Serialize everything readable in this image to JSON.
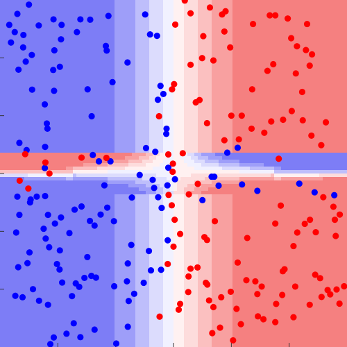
{
  "chart_data": {
    "type": "scatter",
    "title": "",
    "xlabel": "",
    "ylabel": "",
    "xlim": [
      -6,
      6
    ],
    "ylim": [
      -6,
      6
    ],
    "grid": false,
    "legend": "none",
    "colors": {
      "class_a_point": "#0000ff",
      "class_b_point": "#ff0000",
      "region_a_levels": [
        "#7d7df6",
        "#9e9ef9",
        "#bebefb",
        "#dcdcfd",
        "#f1f1ff"
      ],
      "region_b_levels": [
        "#f58080",
        "#f8a0a0",
        "#fbc0c0",
        "#fddcdc",
        "#fff1f1"
      ]
    },
    "background_regions": [
      {
        "label": "blue",
        "class": "a"
      },
      {
        "label": "red",
        "class": "b"
      }
    ],
    "series": [
      {
        "class": "a",
        "points": [
          [
            -5.0,
            5.84
          ],
          [
            -5.4,
            5.52
          ],
          [
            -5.68,
            5.14
          ],
          [
            -5.49,
            4.89
          ],
          [
            -5.19,
            4.79
          ],
          [
            -5.62,
            4.53
          ],
          [
            -5.2,
            4.36
          ],
          [
            -4.9,
            4.1
          ],
          [
            -5.11,
            3.87
          ],
          [
            -5.36,
            3.59
          ],
          [
            -4.66,
            5.12
          ],
          [
            -4.15,
            5.33
          ],
          [
            -3.87,
            5.14
          ],
          [
            -3.89,
            4.64
          ],
          [
            -4.12,
            4.26
          ],
          [
            -3.93,
            3.69
          ],
          [
            -4.16,
            3.58
          ],
          [
            -4.13,
            2.86
          ],
          [
            -4.45,
            2.39
          ],
          [
            -4.38,
            1.73
          ],
          [
            -4.44,
            0.92
          ],
          [
            -4.45,
            0.19
          ],
          [
            -4.89,
            2.9
          ],
          [
            -5.33,
            1.06
          ],
          [
            -5.08,
            0.81
          ],
          [
            -4.36,
            1.55
          ],
          [
            -3.22,
            5.33
          ],
          [
            -3.34,
            4.89
          ],
          [
            -2.88,
            5.32
          ],
          [
            -2.25,
            5.45
          ],
          [
            -2.34,
            4.41
          ],
          [
            -2.31,
            4.25
          ],
          [
            -2.97,
            2.91
          ],
          [
            -2.83,
            1.98
          ],
          [
            -2.79,
            0.64
          ],
          [
            -2.58,
            0.42
          ],
          [
            -2.18,
            0.42
          ],
          [
            -2.39,
            -0.41
          ],
          [
            -2.11,
            3.16
          ],
          [
            -1.59,
            3.84
          ],
          [
            -0.98,
            5.5
          ],
          [
            -0.81,
            4.81
          ],
          [
            -0.57,
            4.76
          ],
          [
            -0.54,
            2.55
          ],
          [
            -0.35,
            2.75
          ],
          [
            -0.95,
            0.88
          ],
          [
            -0.63,
            0.75
          ],
          [
            -1.17,
            -0.05
          ],
          [
            -0.24,
            1.55
          ],
          [
            -0.25,
            1.37
          ],
          [
            -0.53,
            -0.82
          ],
          [
            -1.44,
            -0.83
          ],
          [
            -3.18,
            -1.14
          ],
          [
            -3.42,
            -1.25
          ],
          [
            -4.44,
            -0.78
          ],
          [
            -4.73,
            -0.8
          ],
          [
            -4.94,
            -0.9
          ],
          [
            -5.4,
            -0.8
          ],
          [
            -4.34,
            -1.43
          ],
          [
            -4.49,
            -1.91
          ],
          [
            -4.1,
            -1.73
          ],
          [
            -3.89,
            -1.52
          ],
          [
            -4.42,
            -2.25
          ],
          [
            -4.3,
            -2.55
          ],
          [
            -3.6,
            -2.06
          ],
          [
            -3.93,
            -2.66
          ],
          [
            -4.03,
            -3.13
          ],
          [
            -3.94,
            -3.32
          ],
          [
            -4.34,
            -4.54
          ],
          [
            -4.65,
            -4.4
          ],
          [
            -5.22,
            -4.28
          ],
          [
            -5.47,
            -4.23
          ],
          [
            -5.05,
            -3.1
          ],
          [
            -4.98,
            -2.73
          ],
          [
            -5.33,
            -1.43
          ],
          [
            -5.37,
            -3.24
          ],
          [
            -5.44,
            -2.04
          ],
          [
            -4.96,
            -1.0
          ],
          [
            -4.86,
            -4.0
          ],
          [
            -3.85,
            -3.77
          ],
          [
            -3.51,
            -4.24
          ],
          [
            -2.98,
            -2.89
          ],
          [
            -3.08,
            -3.61
          ],
          [
            -3.38,
            -3.8
          ],
          [
            -2.68,
            -3.6
          ],
          [
            -2.84,
            -3.54
          ],
          [
            -3.26,
            -3.92
          ],
          [
            -2.89,
            -1.64
          ],
          [
            -2.73,
            -1.8
          ],
          [
            -2.52,
            -1.42
          ],
          [
            -2.29,
            -1.18
          ],
          [
            -2.06,
            -1.65
          ],
          [
            -1.46,
            -2.47
          ],
          [
            -1.58,
            -3.11
          ],
          [
            -0.78,
            -3.35
          ],
          [
            -1.61,
            -3.73
          ],
          [
            -2.05,
            -3.9
          ],
          [
            -1.55,
            -4.41
          ],
          [
            -1.36,
            -4.16
          ],
          [
            -1.03,
            -3.78
          ],
          [
            -1.58,
            -5.3
          ],
          [
            -2.73,
            -5.4
          ],
          [
            -3.45,
            -5.18
          ],
          [
            -3.7,
            -5.54
          ],
          [
            -3.22,
            -5.66
          ],
          [
            -4.14,
            -5.67
          ],
          [
            -4.26,
            -5.9
          ],
          [
            -1.98,
            -5.88
          ],
          [
            -0.41,
            -1.19
          ],
          [
            -0.2,
            -2.31
          ],
          [
            -0.85,
            -2.68
          ],
          [
            -0.43,
            -3.33
          ],
          [
            -0.72,
            -0.22
          ],
          [
            -0.21,
            -0.41
          ],
          [
            0.05,
            -0.2
          ],
          [
            -0.67,
            -0.5
          ],
          [
            -0.18,
            0.2
          ],
          [
            1.86,
            0.72
          ],
          [
            2.22,
            0.89
          ],
          [
            2.37,
            -0.38
          ],
          [
            1.56,
            -0.42
          ],
          [
            1.41,
            -0.11
          ],
          [
            1.32,
            -0.11
          ],
          [
            1.0,
            -0.92
          ],
          [
            2.9,
            -0.6
          ],
          [
            4.35,
            -0.35
          ],
          [
            4.88,
            -0.65
          ],
          [
            5.56,
            -0.75
          ],
          [
            -0.45,
            3.03
          ]
        ]
      },
      {
        "class": "b",
        "points": [
          [
            0.39,
            5.98
          ],
          [
            0.06,
            5.15
          ],
          [
            0.59,
            5.54
          ],
          [
            1.26,
            5.74
          ],
          [
            1.8,
            5.61
          ],
          [
            1.68,
            5.5
          ],
          [
            1.76,
            4.91
          ],
          [
            1.03,
            4.75
          ],
          [
            0.99,
            3.99
          ],
          [
            0.59,
            3.76
          ],
          [
            0.9,
            2.54
          ],
          [
            1.16,
            1.74
          ],
          [
            0.77,
            2.46
          ],
          [
            -0.05,
            2.91
          ],
          [
            0.02,
            3.09
          ],
          [
            -0.5,
            1.98
          ],
          [
            -0.18,
            0.66
          ],
          [
            0.32,
            0.7
          ],
          [
            -0.02,
            0.34
          ],
          [
            -0.03,
            0.06
          ],
          [
            1.96,
            4.36
          ],
          [
            2.75,
            5.17
          ],
          [
            3.33,
            5.47
          ],
          [
            3.52,
            5.47
          ],
          [
            3.95,
            5.36
          ],
          [
            4.07,
            4.68
          ],
          [
            4.62,
            5.17
          ],
          [
            4.58,
            4.27
          ],
          [
            4.27,
            4.4
          ],
          [
            4.71,
            3.73
          ],
          [
            4.79,
            4.12
          ],
          [
            4.23,
            3.46
          ],
          [
            4.45,
            2.82
          ],
          [
            4.09,
            2.16
          ],
          [
            3.45,
            3.78
          ],
          [
            3.25,
            3.55
          ],
          [
            2.72,
            2.91
          ],
          [
            2.7,
            1.55
          ],
          [
            2.36,
            2.0
          ],
          [
            2.0,
            2.0
          ],
          [
            1.38,
            3.91
          ],
          [
            3.14,
            1.41
          ],
          [
            3.38,
            1.8
          ],
          [
            3.79,
            1.86
          ],
          [
            4.47,
            1.84
          ],
          [
            4.77,
            1.31
          ],
          [
            5.27,
            1.77
          ],
          [
            1.76,
            1.15
          ],
          [
            2.26,
            1.18
          ],
          [
            3.64,
            0.51
          ],
          [
            5.11,
            0.98
          ],
          [
            -0.17,
            -0.74
          ],
          [
            -0.06,
            -1.1
          ],
          [
            0.04,
            -1.6
          ],
          [
            0.84,
            -0.36
          ],
          [
            0.53,
            -0.72
          ],
          [
            1.16,
            -2.3
          ],
          [
            1.43,
            -1.65
          ],
          [
            2.22,
            -3.08
          ],
          [
            2.55,
            -2.23
          ],
          [
            3.52,
            -1.73
          ],
          [
            3.71,
            -1.11
          ],
          [
            4.15,
            -2.51
          ],
          [
            4.28,
            -2.04
          ],
          [
            4.54,
            -1.74
          ],
          [
            4.72,
            -1.6
          ],
          [
            4.92,
            -2.03
          ],
          [
            5.18,
            -0.82
          ],
          [
            5.53,
            -1.15
          ],
          [
            5.58,
            -1.6
          ],
          [
            5.75,
            -1.42
          ],
          [
            5.61,
            -2.16
          ],
          [
            0.0,
            -2.53
          ],
          [
            -0.2,
            -3.13
          ],
          [
            0.59,
            -3.29
          ],
          [
            0.52,
            -3.56
          ],
          [
            0.51,
            -4.1
          ],
          [
            0.23,
            -4.51
          ],
          [
            0.18,
            -4.71
          ],
          [
            1.12,
            -3.78
          ],
          [
            1.17,
            -3.84
          ],
          [
            1.23,
            -4.39
          ],
          [
            1.38,
            -4.62
          ],
          [
            1.61,
            -5.33
          ],
          [
            1.34,
            -5.52
          ],
          [
            2.06,
            -5.77
          ],
          [
            2.33,
            -5.21
          ],
          [
            2.18,
            -4.68
          ],
          [
            2.92,
            -4.94
          ],
          [
            3.11,
            -5.04
          ],
          [
            1.65,
            -4.28
          ],
          [
            1.98,
            -4.09
          ],
          [
            2.52,
            -3.69
          ],
          [
            2.83,
            -3.73
          ],
          [
            2.9,
            -4.17
          ],
          [
            3.05,
            -3.91
          ],
          [
            3.55,
            -4.51
          ],
          [
            3.52,
            -5.14
          ],
          [
            3.76,
            -4.2
          ],
          [
            3.78,
            -3.38
          ],
          [
            3.84,
            -3.31
          ],
          [
            4.21,
            -3.91
          ],
          [
            4.71,
            -4.54
          ],
          [
            4.9,
            -3.5
          ],
          [
            5.07,
            -3.62
          ],
          [
            5.33,
            -4.03
          ],
          [
            5.42,
            -4.18
          ],
          [
            5.64,
            -4.01
          ],
          [
            5.12,
            -4.27
          ],
          [
            5.74,
            -4.5
          ],
          [
            5.9,
            -3.9
          ],
          [
            4.15,
            -4.97
          ],
          [
            -0.48,
            -4.95
          ],
          [
            0.83,
            -3.25
          ],
          [
            1.07,
            -2.2
          ],
          [
            0.23,
            -2.09
          ],
          [
            -5.13,
            0.67
          ],
          [
            -4.43,
            0.38
          ],
          [
            -4.29,
            0.0
          ],
          [
            -5.32,
            -0.25
          ],
          [
            -5.02,
            -0.52
          ],
          [
            -3.18,
            0.55
          ],
          [
            -2.32,
            0.54
          ]
        ]
      }
    ]
  }
}
